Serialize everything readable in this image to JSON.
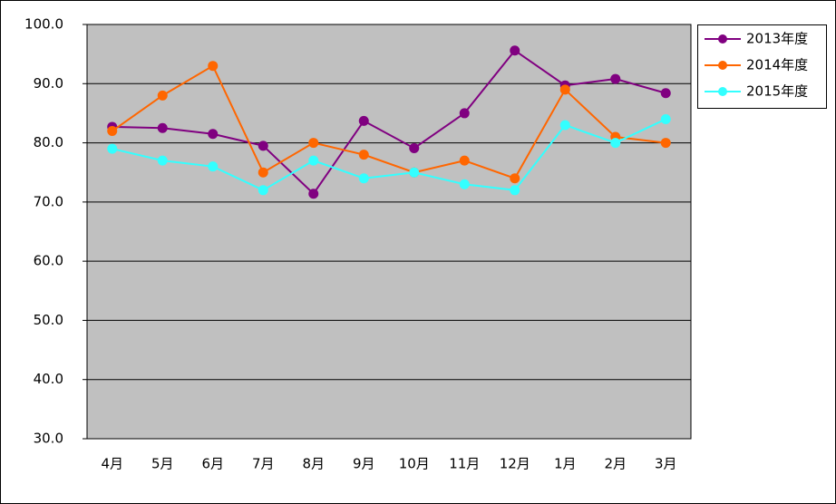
{
  "chart_data": {
    "type": "line",
    "categories": [
      "4月",
      "5月",
      "6月",
      "7月",
      "8月",
      "9月",
      "10月",
      "11月",
      "12月",
      "1月",
      "2月",
      "3月"
    ],
    "series": [
      {
        "name": "2013年度",
        "color": "#800080",
        "values": [
          82.7,
          82.5,
          81.5,
          79.5,
          71.4,
          83.7,
          79.1,
          85.0,
          95.6,
          89.7,
          90.8,
          88.4
        ]
      },
      {
        "name": "2014年度",
        "color": "#ff6600",
        "values": [
          82,
          88,
          93,
          75,
          80,
          78,
          75,
          77,
          74,
          89,
          81,
          80
        ]
      },
      {
        "name": "2015年度",
        "color": "#33ffff",
        "values": [
          79,
          77,
          76,
          72,
          77,
          74,
          75,
          73,
          72,
          83,
          80,
          84
        ]
      }
    ],
    "ylim": [
      30,
      100
    ],
    "yticks": [
      {
        "value": 30,
        "label": "30.0"
      },
      {
        "value": 40,
        "label": "40.0"
      },
      {
        "value": 50,
        "label": "50.0"
      },
      {
        "value": 60,
        "label": "60.0"
      },
      {
        "value": 70,
        "label": "70.0"
      },
      {
        "value": 80,
        "label": "80.0"
      },
      {
        "value": 90,
        "label": "90.0"
      },
      {
        "value": 100,
        "label": "100.0"
      }
    ],
    "grid": true,
    "legend": "top-right"
  }
}
